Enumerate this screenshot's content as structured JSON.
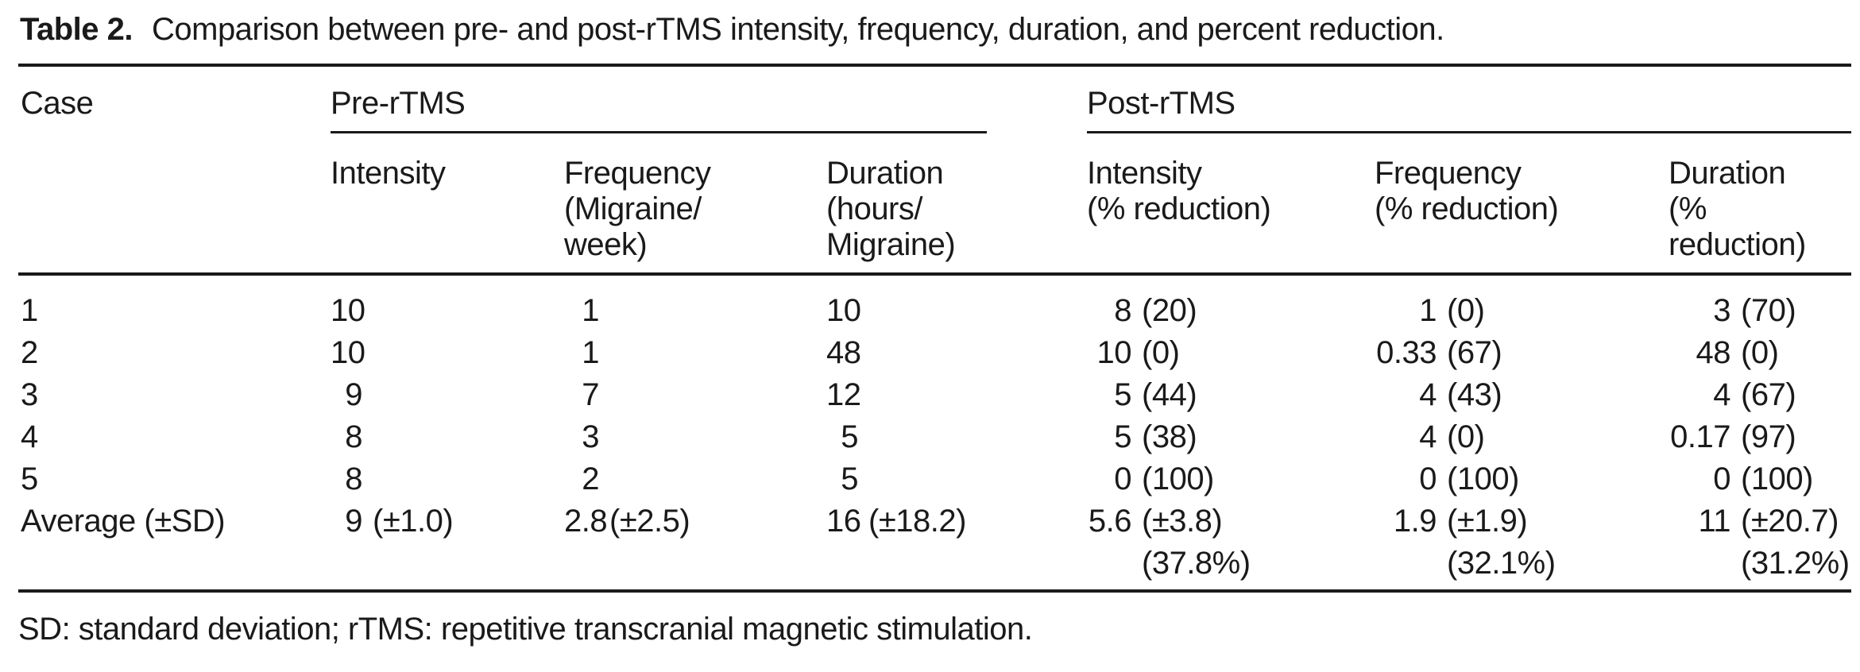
{
  "ink_color": "#1a1a1a",
  "background_color": "#ffffff",
  "title": {
    "label": "Table 2.",
    "text": "Comparison between pre- and post-rTMS intensity, frequency, duration, and percent reduction."
  },
  "header": {
    "case_label": "Case",
    "groups": [
      {
        "label": "Pre-rTMS"
      },
      {
        "label": "Post-rTMS"
      }
    ],
    "columns": [
      {
        "lines": [
          "Intensity",
          "",
          ""
        ]
      },
      {
        "lines": [
          "Frequency",
          "(Migraine/",
          "week)"
        ]
      },
      {
        "lines": [
          "Duration",
          "(hours/",
          "Migraine)"
        ]
      },
      {
        "lines": [
          "Intensity",
          "(% reduction)",
          ""
        ]
      },
      {
        "lines": [
          "Frequency",
          "(% reduction)",
          ""
        ]
      },
      {
        "lines": [
          "Duration",
          "(% reduction)",
          ""
        ]
      }
    ]
  },
  "rows": [
    {
      "case": "1",
      "cells": [
        {
          "num": "10",
          "paren": ""
        },
        {
          "num": "1",
          "paren": ""
        },
        {
          "num": "10",
          "paren": ""
        },
        {
          "num": "8",
          "paren": "(20)"
        },
        {
          "num": "1",
          "paren": "(0)"
        },
        {
          "num": "3",
          "paren": "(70)"
        }
      ]
    },
    {
      "case": "2",
      "cells": [
        {
          "num": "10",
          "paren": ""
        },
        {
          "num": "1",
          "paren": ""
        },
        {
          "num": "48",
          "paren": ""
        },
        {
          "num": "10",
          "paren": "(0)"
        },
        {
          "num": "0.33",
          "paren": "(67)"
        },
        {
          "num": "48",
          "paren": "(0)"
        }
      ]
    },
    {
      "case": "3",
      "cells": [
        {
          "num": "9",
          "paren": ""
        },
        {
          "num": "7",
          "paren": ""
        },
        {
          "num": "12",
          "paren": ""
        },
        {
          "num": "5",
          "paren": "(44)"
        },
        {
          "num": "4",
          "paren": "(43)"
        },
        {
          "num": "4",
          "paren": "(67)"
        }
      ]
    },
    {
      "case": "4",
      "cells": [
        {
          "num": "8",
          "paren": ""
        },
        {
          "num": "3",
          "paren": ""
        },
        {
          "num": "5",
          "paren": ""
        },
        {
          "num": "5",
          "paren": "(38)"
        },
        {
          "num": "4",
          "paren": "(0)"
        },
        {
          "num": "0.17",
          "paren": "(97)"
        }
      ]
    },
    {
      "case": "5",
      "cells": [
        {
          "num": "8",
          "paren": ""
        },
        {
          "num": "2",
          "paren": ""
        },
        {
          "num": "5",
          "paren": ""
        },
        {
          "num": "0",
          "paren": "(100)"
        },
        {
          "num": "0",
          "paren": "(100)"
        },
        {
          "num": "0",
          "paren": "(100)"
        }
      ]
    },
    {
      "case": "Average (±SD)",
      "cells": [
        {
          "num": "9",
          "paren": "(±1.0)"
        },
        {
          "num": "2.8",
          "paren": "(±2.5)"
        },
        {
          "num": "16",
          "paren": "(±18.2)"
        },
        {
          "num": "5.6",
          "paren": "(±3.8)",
          "pct": "(37.8%)"
        },
        {
          "num": "1.9",
          "paren": "(±1.9)",
          "pct": "(32.1%)"
        },
        {
          "num": "11",
          "paren": "(±20.7)",
          "pct": "(31.2%)"
        }
      ]
    }
  ],
  "footnote": "SD: standard deviation; rTMS: repetitive transcranial magnetic stimulation."
}
